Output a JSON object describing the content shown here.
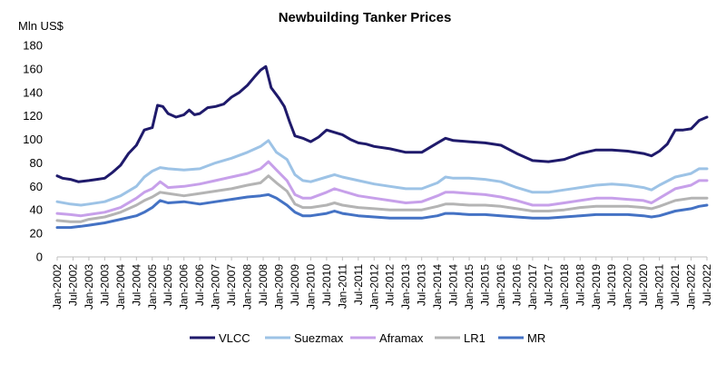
{
  "chart_data": {
    "type": "line",
    "title": "Newbuilding Tanker Prices",
    "ylabel": "Mln US$",
    "xlabel": "",
    "ylim": [
      0,
      180
    ],
    "y_ticks": [
      "0",
      "20",
      "40",
      "60",
      "80",
      "100",
      "120",
      "140",
      "160",
      "180"
    ],
    "x_range": [
      "2002-01",
      "2022-07"
    ],
    "x_tick_labels": [
      "Jan-2002",
      "Jul-2002",
      "Jan-2003",
      "Jul-2003",
      "Jan-2004",
      "Jul-2004",
      "Jan-2005",
      "Jul-2005",
      "Jan-2006",
      "Jul-2006",
      "Jan-2007",
      "Jul-2007",
      "Jan-2008",
      "Jul-2008",
      "Jan-2009",
      "Jul-2009",
      "Jan-2010",
      "Jul-2010",
      "Jan-2011",
      "Jul-2011",
      "Jan-2012",
      "Jul-2012",
      "Jan-2013",
      "Jul-2013",
      "Jan-2014",
      "Jul-2014",
      "Jan-2015",
      "Jul-2015",
      "Jan-2016",
      "Jul-2016",
      "Jan-2017",
      "Jul-2017",
      "Jan-2018",
      "Jul-2018",
      "Jan-2019",
      "Jul-2019",
      "Jan-2020",
      "Jul-2020",
      "Jan-2021",
      "Jul-2021",
      "Jan-2022",
      "Jul-2022"
    ],
    "grid": false,
    "legend_position": "bottom",
    "series": [
      {
        "name": "VLCC",
        "color": "#1f1a6b",
        "points": [
          [
            "2002-01",
            69
          ],
          [
            "2002-03",
            67
          ],
          [
            "2002-06",
            66
          ],
          [
            "2002-09",
            64
          ],
          [
            "2003-01",
            65
          ],
          [
            "2003-04",
            66
          ],
          [
            "2003-07",
            67
          ],
          [
            "2003-10",
            72
          ],
          [
            "2004-01",
            78
          ],
          [
            "2004-04",
            88
          ],
          [
            "2004-07",
            95
          ],
          [
            "2004-10",
            108
          ],
          [
            "2005-01",
            110
          ],
          [
            "2005-03",
            129
          ],
          [
            "2005-05",
            128
          ],
          [
            "2005-07",
            122
          ],
          [
            "2005-10",
            119
          ],
          [
            "2006-01",
            121
          ],
          [
            "2006-03",
            125
          ],
          [
            "2006-05",
            121
          ],
          [
            "2006-07",
            122
          ],
          [
            "2006-10",
            127
          ],
          [
            "2007-01",
            128
          ],
          [
            "2007-04",
            130
          ],
          [
            "2007-07",
            136
          ],
          [
            "2007-10",
            140
          ],
          [
            "2008-01",
            146
          ],
          [
            "2008-04",
            154
          ],
          [
            "2008-06",
            159
          ],
          [
            "2008-08",
            162
          ],
          [
            "2008-10",
            144
          ],
          [
            "2009-01",
            135
          ],
          [
            "2009-03",
            128
          ],
          [
            "2009-05",
            115
          ],
          [
            "2009-07",
            103
          ],
          [
            "2009-10",
            101
          ],
          [
            "2010-01",
            98
          ],
          [
            "2010-04",
            102
          ],
          [
            "2010-07",
            108
          ],
          [
            "2010-10",
            106
          ],
          [
            "2011-01",
            104
          ],
          [
            "2011-04",
            100
          ],
          [
            "2011-07",
            97
          ],
          [
            "2011-10",
            96
          ],
          [
            "2012-01",
            94
          ],
          [
            "2012-07",
            92
          ],
          [
            "2013-01",
            89
          ],
          [
            "2013-07",
            89
          ],
          [
            "2014-01",
            97
          ],
          [
            "2014-04",
            101
          ],
          [
            "2014-07",
            99
          ],
          [
            "2015-01",
            98
          ],
          [
            "2015-07",
            97
          ],
          [
            "2016-01",
            95
          ],
          [
            "2016-07",
            88
          ],
          [
            "2017-01",
            82
          ],
          [
            "2017-07",
            81
          ],
          [
            "2018-01",
            83
          ],
          [
            "2018-07",
            88
          ],
          [
            "2019-01",
            91
          ],
          [
            "2019-07",
            91
          ],
          [
            "2020-01",
            90
          ],
          [
            "2020-07",
            88
          ],
          [
            "2020-10",
            86
          ],
          [
            "2021-01",
            90
          ],
          [
            "2021-04",
            96
          ],
          [
            "2021-07",
            108
          ],
          [
            "2021-10",
            108
          ],
          [
            "2022-01",
            109
          ],
          [
            "2022-04",
            116
          ],
          [
            "2022-07",
            119
          ]
        ]
      },
      {
        "name": "Suezmax",
        "color": "#9dc3e6",
        "points": [
          [
            "2002-01",
            47
          ],
          [
            "2002-06",
            45
          ],
          [
            "2002-10",
            44
          ],
          [
            "2003-01",
            45
          ],
          [
            "2003-07",
            47
          ],
          [
            "2004-01",
            52
          ],
          [
            "2004-07",
            60
          ],
          [
            "2004-10",
            68
          ],
          [
            "2005-01",
            73
          ],
          [
            "2005-04",
            76
          ],
          [
            "2005-07",
            75
          ],
          [
            "2006-01",
            74
          ],
          [
            "2006-07",
            75
          ],
          [
            "2007-01",
            80
          ],
          [
            "2007-07",
            84
          ],
          [
            "2008-01",
            89
          ],
          [
            "2008-06",
            94
          ],
          [
            "2008-09",
            99
          ],
          [
            "2008-12",
            89
          ],
          [
            "2009-04",
            83
          ],
          [
            "2009-07",
            70
          ],
          [
            "2009-10",
            65
          ],
          [
            "2010-01",
            64
          ],
          [
            "2010-07",
            68
          ],
          [
            "2010-10",
            70
          ],
          [
            "2011-01",
            68
          ],
          [
            "2011-07",
            65
          ],
          [
            "2012-01",
            62
          ],
          [
            "2012-07",
            60
          ],
          [
            "2013-01",
            58
          ],
          [
            "2013-07",
            58
          ],
          [
            "2014-01",
            63
          ],
          [
            "2014-04",
            68
          ],
          [
            "2014-07",
            67
          ],
          [
            "2015-01",
            67
          ],
          [
            "2015-07",
            66
          ],
          [
            "2016-01",
            64
          ],
          [
            "2016-07",
            59
          ],
          [
            "2017-01",
            55
          ],
          [
            "2017-07",
            55
          ],
          [
            "2018-01",
            57
          ],
          [
            "2018-07",
            59
          ],
          [
            "2019-01",
            61
          ],
          [
            "2019-07",
            62
          ],
          [
            "2020-01",
            61
          ],
          [
            "2020-07",
            59
          ],
          [
            "2020-10",
            57
          ],
          [
            "2021-01",
            61
          ],
          [
            "2021-07",
            68
          ],
          [
            "2022-01",
            71
          ],
          [
            "2022-04",
            75
          ],
          [
            "2022-07",
            75
          ]
        ]
      },
      {
        "name": "Aframax",
        "color": "#c7a0ea",
        "points": [
          [
            "2002-01",
            37
          ],
          [
            "2002-06",
            36
          ],
          [
            "2002-10",
            35
          ],
          [
            "2003-01",
            36
          ],
          [
            "2003-07",
            38
          ],
          [
            "2004-01",
            42
          ],
          [
            "2004-07",
            50
          ],
          [
            "2004-10",
            55
          ],
          [
            "2005-01",
            58
          ],
          [
            "2005-04",
            64
          ],
          [
            "2005-07",
            59
          ],
          [
            "2006-01",
            60
          ],
          [
            "2006-07",
            62
          ],
          [
            "2007-01",
            65
          ],
          [
            "2007-07",
            68
          ],
          [
            "2008-01",
            71
          ],
          [
            "2008-06",
            75
          ],
          [
            "2008-09",
            81
          ],
          [
            "2008-12",
            74
          ],
          [
            "2009-04",
            65
          ],
          [
            "2009-07",
            53
          ],
          [
            "2009-10",
            50
          ],
          [
            "2010-01",
            50
          ],
          [
            "2010-07",
            55
          ],
          [
            "2010-10",
            58
          ],
          [
            "2011-01",
            56
          ],
          [
            "2011-07",
            52
          ],
          [
            "2012-01",
            50
          ],
          [
            "2012-07",
            48
          ],
          [
            "2013-01",
            46
          ],
          [
            "2013-07",
            47
          ],
          [
            "2014-01",
            52
          ],
          [
            "2014-04",
            55
          ],
          [
            "2014-07",
            55
          ],
          [
            "2015-01",
            54
          ],
          [
            "2015-07",
            53
          ],
          [
            "2016-01",
            51
          ],
          [
            "2016-07",
            48
          ],
          [
            "2017-01",
            44
          ],
          [
            "2017-07",
            44
          ],
          [
            "2018-01",
            46
          ],
          [
            "2018-07",
            48
          ],
          [
            "2019-01",
            50
          ],
          [
            "2019-07",
            50
          ],
          [
            "2020-01",
            49
          ],
          [
            "2020-07",
            48
          ],
          [
            "2020-10",
            46
          ],
          [
            "2021-01",
            50
          ],
          [
            "2021-07",
            58
          ],
          [
            "2022-01",
            61
          ],
          [
            "2022-04",
            65
          ],
          [
            "2022-07",
            65
          ]
        ]
      },
      {
        "name": "LR1",
        "color": "#b4b4b4",
        "points": [
          [
            "2002-01",
            31
          ],
          [
            "2002-06",
            30
          ],
          [
            "2002-10",
            30
          ],
          [
            "2003-01",
            32
          ],
          [
            "2003-07",
            34
          ],
          [
            "2004-01",
            38
          ],
          [
            "2004-07",
            44
          ],
          [
            "2004-10",
            48
          ],
          [
            "2005-01",
            51
          ],
          [
            "2005-04",
            55
          ],
          [
            "2005-07",
            54
          ],
          [
            "2006-01",
            52
          ],
          [
            "2006-07",
            54
          ],
          [
            "2007-01",
            56
          ],
          [
            "2007-07",
            58
          ],
          [
            "2008-01",
            61
          ],
          [
            "2008-06",
            63
          ],
          [
            "2008-09",
            69
          ],
          [
            "2008-12",
            63
          ],
          [
            "2009-04",
            56
          ],
          [
            "2009-07",
            45
          ],
          [
            "2009-10",
            42
          ],
          [
            "2010-01",
            42
          ],
          [
            "2010-07",
            44
          ],
          [
            "2010-10",
            46
          ],
          [
            "2011-01",
            44
          ],
          [
            "2011-07",
            42
          ],
          [
            "2012-01",
            41
          ],
          [
            "2012-07",
            40
          ],
          [
            "2013-01",
            40
          ],
          [
            "2013-07",
            40
          ],
          [
            "2014-01",
            43
          ],
          [
            "2014-04",
            45
          ],
          [
            "2014-07",
            45
          ],
          [
            "2015-01",
            44
          ],
          [
            "2015-07",
            44
          ],
          [
            "2016-01",
            43
          ],
          [
            "2016-07",
            41
          ],
          [
            "2017-01",
            39
          ],
          [
            "2017-07",
            39
          ],
          [
            "2018-01",
            40
          ],
          [
            "2018-07",
            42
          ],
          [
            "2019-01",
            43
          ],
          [
            "2019-07",
            43
          ],
          [
            "2020-01",
            43
          ],
          [
            "2020-07",
            42
          ],
          [
            "2020-10",
            41
          ],
          [
            "2021-01",
            43
          ],
          [
            "2021-07",
            48
          ],
          [
            "2022-01",
            50
          ],
          [
            "2022-04",
            50
          ],
          [
            "2022-07",
            50
          ]
        ]
      },
      {
        "name": "MR",
        "color": "#4472c4",
        "points": [
          [
            "2002-01",
            25
          ],
          [
            "2002-06",
            25
          ],
          [
            "2002-10",
            26
          ],
          [
            "2003-01",
            27
          ],
          [
            "2003-07",
            29
          ],
          [
            "2004-01",
            32
          ],
          [
            "2004-07",
            35
          ],
          [
            "2004-10",
            38
          ],
          [
            "2005-01",
            42
          ],
          [
            "2005-04",
            48
          ],
          [
            "2005-07",
            46
          ],
          [
            "2006-01",
            47
          ],
          [
            "2006-07",
            45
          ],
          [
            "2007-01",
            47
          ],
          [
            "2007-07",
            49
          ],
          [
            "2008-01",
            51
          ],
          [
            "2008-06",
            52
          ],
          [
            "2008-09",
            53
          ],
          [
            "2008-12",
            50
          ],
          [
            "2009-04",
            44
          ],
          [
            "2009-07",
            38
          ],
          [
            "2009-10",
            35
          ],
          [
            "2010-01",
            35
          ],
          [
            "2010-07",
            37
          ],
          [
            "2010-10",
            39
          ],
          [
            "2011-01",
            37
          ],
          [
            "2011-07",
            35
          ],
          [
            "2012-01",
            34
          ],
          [
            "2012-07",
            33
          ],
          [
            "2013-01",
            33
          ],
          [
            "2013-07",
            33
          ],
          [
            "2014-01",
            35
          ],
          [
            "2014-04",
            37
          ],
          [
            "2014-07",
            37
          ],
          [
            "2015-01",
            36
          ],
          [
            "2015-07",
            36
          ],
          [
            "2016-01",
            35
          ],
          [
            "2016-07",
            34
          ],
          [
            "2017-01",
            33
          ],
          [
            "2017-07",
            33
          ],
          [
            "2018-01",
            34
          ],
          [
            "2018-07",
            35
          ],
          [
            "2019-01",
            36
          ],
          [
            "2019-07",
            36
          ],
          [
            "2020-01",
            36
          ],
          [
            "2020-07",
            35
          ],
          [
            "2020-10",
            34
          ],
          [
            "2021-01",
            35
          ],
          [
            "2021-07",
            39
          ],
          [
            "2022-01",
            41
          ],
          [
            "2022-04",
            43
          ],
          [
            "2022-07",
            44
          ]
        ]
      }
    ]
  }
}
